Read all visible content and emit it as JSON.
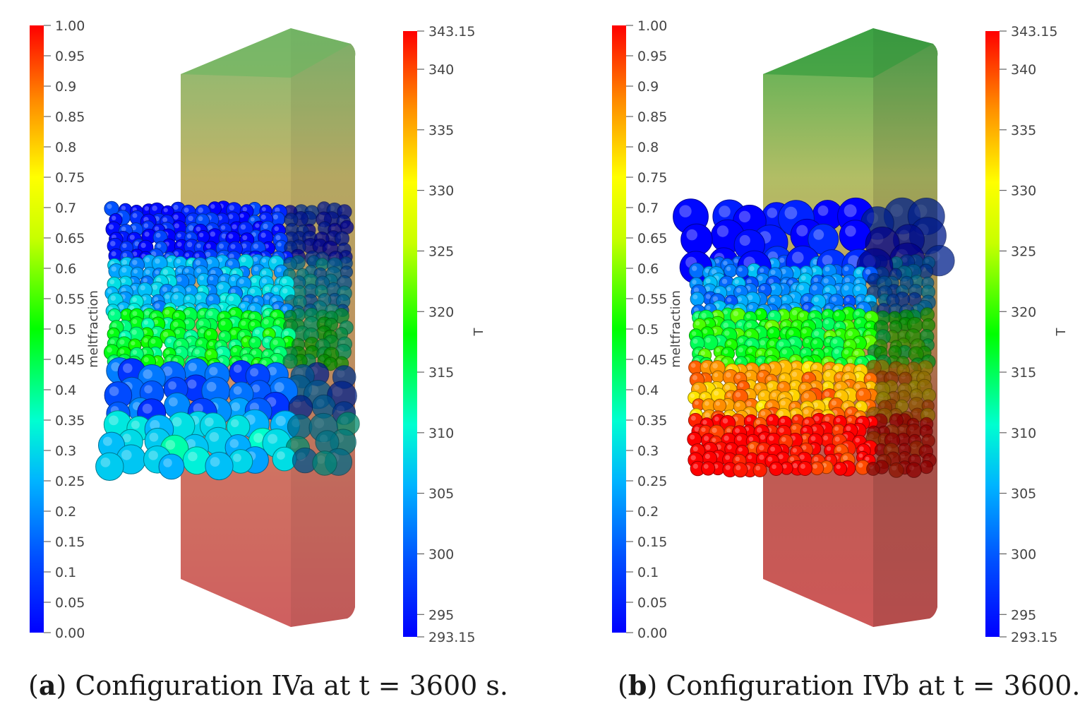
{
  "panels": [
    {
      "id": "a",
      "caption": {
        "label": "a",
        "open": "(",
        "close": ")",
        "text": "Configuration IVa at t = 3600 s."
      },
      "meltfraction_bar": {
        "title": "meltfraction",
        "range": [
          0.0,
          1.0
        ],
        "ticks": [
          "1.00",
          "0.95",
          "0.9",
          "0.85",
          "0.8",
          "0.75",
          "0.7",
          "0.65",
          "0.6",
          "0.55",
          "0.5",
          "0.45",
          "0.4",
          "0.35",
          "0.3",
          "0.25",
          "0.2",
          "0.15",
          "0.1",
          "0.05",
          "0.00"
        ]
      },
      "temperature_bar": {
        "title": "T",
        "range": [
          293.15,
          343.15
        ],
        "ticks": [
          "343.15",
          "340",
          "335",
          "330",
          "325",
          "320",
          "315",
          "310",
          "305",
          "300",
          "295",
          "293.15"
        ],
        "tick_values": [
          343.15,
          340,
          335,
          330,
          325,
          320,
          315,
          310,
          305,
          300,
          295,
          293.15
        ]
      },
      "particle_layers": [
        {
          "name": "top-layer",
          "meltfraction": 0.05,
          "size": "small"
        },
        {
          "name": "upper-mid-layer",
          "meltfraction": 0.25,
          "size": "small"
        },
        {
          "name": "mid-layer",
          "meltfraction": 0.45,
          "size": "small"
        },
        {
          "name": "lower-layer",
          "meltfraction": 0.15,
          "size": "large"
        },
        {
          "name": "bottom-layer",
          "meltfraction": 0.3,
          "size": "large"
        }
      ]
    },
    {
      "id": "b",
      "caption": {
        "label": "b",
        "open": "(",
        "close": ")",
        "text": "Configuration IVb at t = 3600."
      },
      "meltfraction_bar": {
        "title": "meltfraction",
        "range": [
          0.0,
          1.0
        ],
        "ticks": [
          "1.00",
          "0.95",
          "0.9",
          "0.85",
          "0.8",
          "0.75",
          "0.7",
          "0.65",
          "0.6",
          "0.55",
          "0.5",
          "0.45",
          "0.4",
          "0.35",
          "0.3",
          "0.25",
          "0.2",
          "0.15",
          "0.1",
          "0.05",
          "0.00"
        ]
      },
      "temperature_bar": {
        "title": "T",
        "range": [
          293.15,
          343.15
        ],
        "ticks": [
          "343.15",
          "340",
          "335",
          "330",
          "325",
          "320",
          "315",
          "310",
          "305",
          "300",
          "295",
          "293.15"
        ],
        "tick_values": [
          343.15,
          340,
          335,
          330,
          325,
          320,
          315,
          310,
          305,
          300,
          295,
          293.15
        ]
      },
      "particle_layers": [
        {
          "name": "top-layer",
          "meltfraction": 0.02,
          "size": "large"
        },
        {
          "name": "upper-mid-layer",
          "meltfraction": 0.2,
          "size": "small"
        },
        {
          "name": "mid-layer",
          "meltfraction": 0.5,
          "size": "small"
        },
        {
          "name": "lower-layer",
          "meltfraction": 0.85,
          "size": "small"
        },
        {
          "name": "bottom-layer",
          "meltfraction": 1.0,
          "size": "small"
        }
      ]
    }
  ]
}
